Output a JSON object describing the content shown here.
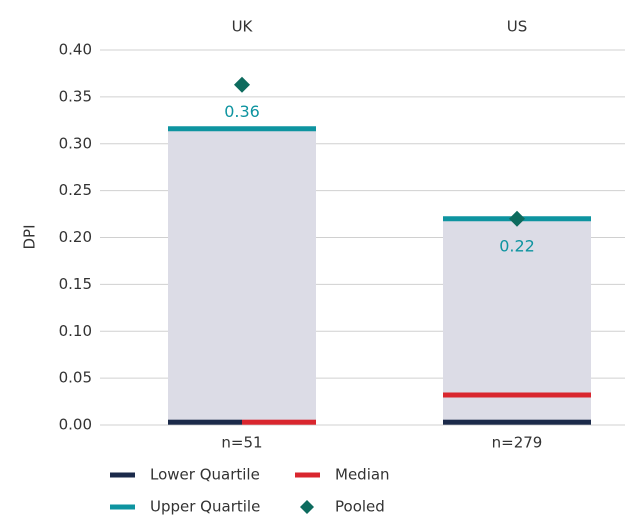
{
  "chart_data": {
    "type": "box",
    "y_label": "DPI",
    "categories": [
      "UK",
      "US"
    ],
    "n_labels": [
      "n=51",
      "n=279"
    ],
    "box_color": "#dcdce6",
    "ylim": [
      0,
      0.4
    ],
    "yticks": [
      {
        "value": 0,
        "label": "0.00"
      },
      {
        "value": 0.05,
        "label": "0.05"
      },
      {
        "value": 0.1,
        "label": "0.10"
      },
      {
        "value": 0.15,
        "label": "0.15"
      },
      {
        "value": 0.2,
        "label": "0.20"
      },
      {
        "value": 0.25,
        "label": "0.25"
      },
      {
        "value": 0.3,
        "label": "0.30"
      },
      {
        "value": 0.35,
        "label": "0.35"
      },
      {
        "value": 0.4,
        "label": "0.40"
      }
    ],
    "grid": true,
    "series": [
      {
        "name": "Lower Quartile",
        "color": "#1b2a4a",
        "values": [
          0.003,
          0.003
        ]
      },
      {
        "name": "Median",
        "color": "#d9262e",
        "values": [
          0.003,
          0.032
        ]
      },
      {
        "name": "Upper Quartile",
        "color": "#0e94a0",
        "values": [
          0.316,
          0.22
        ]
      },
      {
        "name": "Pooled",
        "color": "#0d6b5e",
        "values": [
          0.363,
          0.22
        ],
        "value_labels": [
          "0.36",
          "0.22"
        ]
      }
    ]
  }
}
